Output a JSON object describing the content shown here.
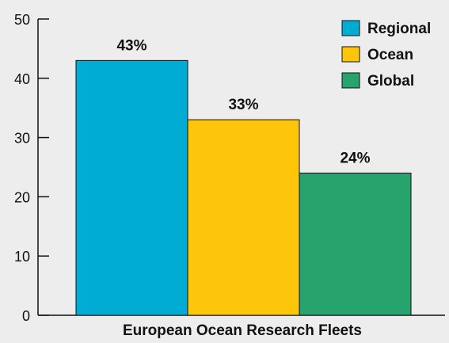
{
  "chart_data": {
    "type": "bar",
    "xlabel": "European Ocean Research Fleets",
    "ylabel": "",
    "ylim": [
      0,
      50
    ],
    "yticks": [
      0,
      10,
      20,
      30,
      40,
      50
    ],
    "grid": false,
    "legend_position": "top-right",
    "series": [
      {
        "name": "Regional",
        "value": 43,
        "label": "43%",
        "color": "#00acd4"
      },
      {
        "name": "Ocean",
        "value": 33,
        "label": "33%",
        "color": "#fdc60a"
      },
      {
        "name": "Global",
        "value": 24,
        "label": "24%",
        "color": "#27a36e"
      }
    ]
  }
}
